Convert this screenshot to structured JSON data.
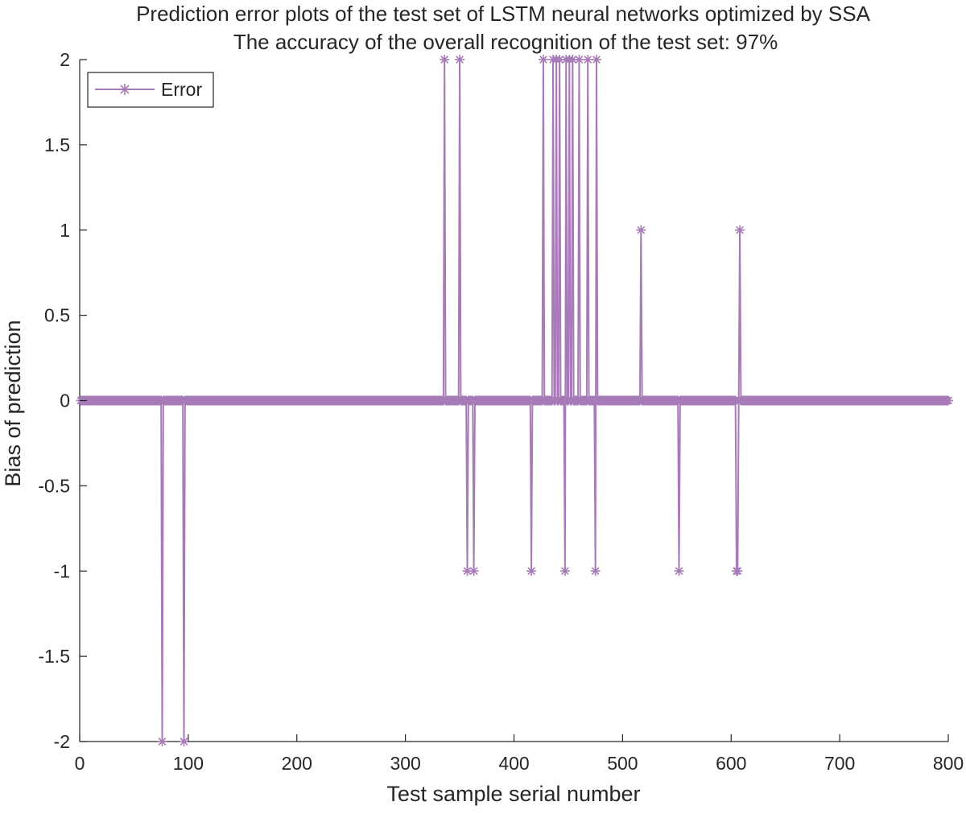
{
  "chart_data": {
    "type": "line",
    "title": "Prediction error plots of the test set of LSTM neural networks optimized by SSA",
    "subtitle": "The accuracy of the overall recognition of the test set: 97%",
    "xlabel": "Test sample serial number",
    "ylabel": "Bias of prediction",
    "xlim": [
      0,
      800
    ],
    "ylim": [
      -2,
      2
    ],
    "xticks": [
      0,
      100,
      200,
      300,
      400,
      500,
      600,
      700,
      800
    ],
    "yticks": [
      2,
      1.5,
      1,
      0.5,
      0,
      -0.5,
      -1,
      -1.5,
      -2
    ],
    "xtick_labels": [
      "0",
      "100",
      "200",
      "300",
      "400",
      "500",
      "600",
      "700",
      "800"
    ],
    "ytick_labels": [
      "2",
      "1.5",
      "1",
      "0.5",
      "0",
      "-0.5",
      "-1",
      "-1.5",
      "-2"
    ],
    "grid": false,
    "legend_position": "top-left",
    "series": [
      {
        "name": "Error",
        "color": "#a77ab8",
        "marker": "asterisk",
        "n_points": 800,
        "nonzero": [
          {
            "x": 76,
            "y": -2
          },
          {
            "x": 96,
            "y": -2
          },
          {
            "x": 336,
            "y": 2
          },
          {
            "x": 350,
            "y": 2
          },
          {
            "x": 357,
            "y": -1
          },
          {
            "x": 363,
            "y": -1
          },
          {
            "x": 416,
            "y": -1
          },
          {
            "x": 427,
            "y": 2
          },
          {
            "x": 436,
            "y": 2
          },
          {
            "x": 439,
            "y": 2
          },
          {
            "x": 442,
            "y": 2
          },
          {
            "x": 447,
            "y": -1
          },
          {
            "x": 448,
            "y": 2
          },
          {
            "x": 451,
            "y": 2
          },
          {
            "x": 454,
            "y": 2
          },
          {
            "x": 460,
            "y": 2
          },
          {
            "x": 468,
            "y": 2
          },
          {
            "x": 475,
            "y": -1
          },
          {
            "x": 476,
            "y": 2
          },
          {
            "x": 517,
            "y": 1
          },
          {
            "x": 552,
            "y": -1
          },
          {
            "x": 605,
            "y": -1
          },
          {
            "x": 606,
            "y": -1
          },
          {
            "x": 608,
            "y": 1
          }
        ]
      }
    ]
  }
}
